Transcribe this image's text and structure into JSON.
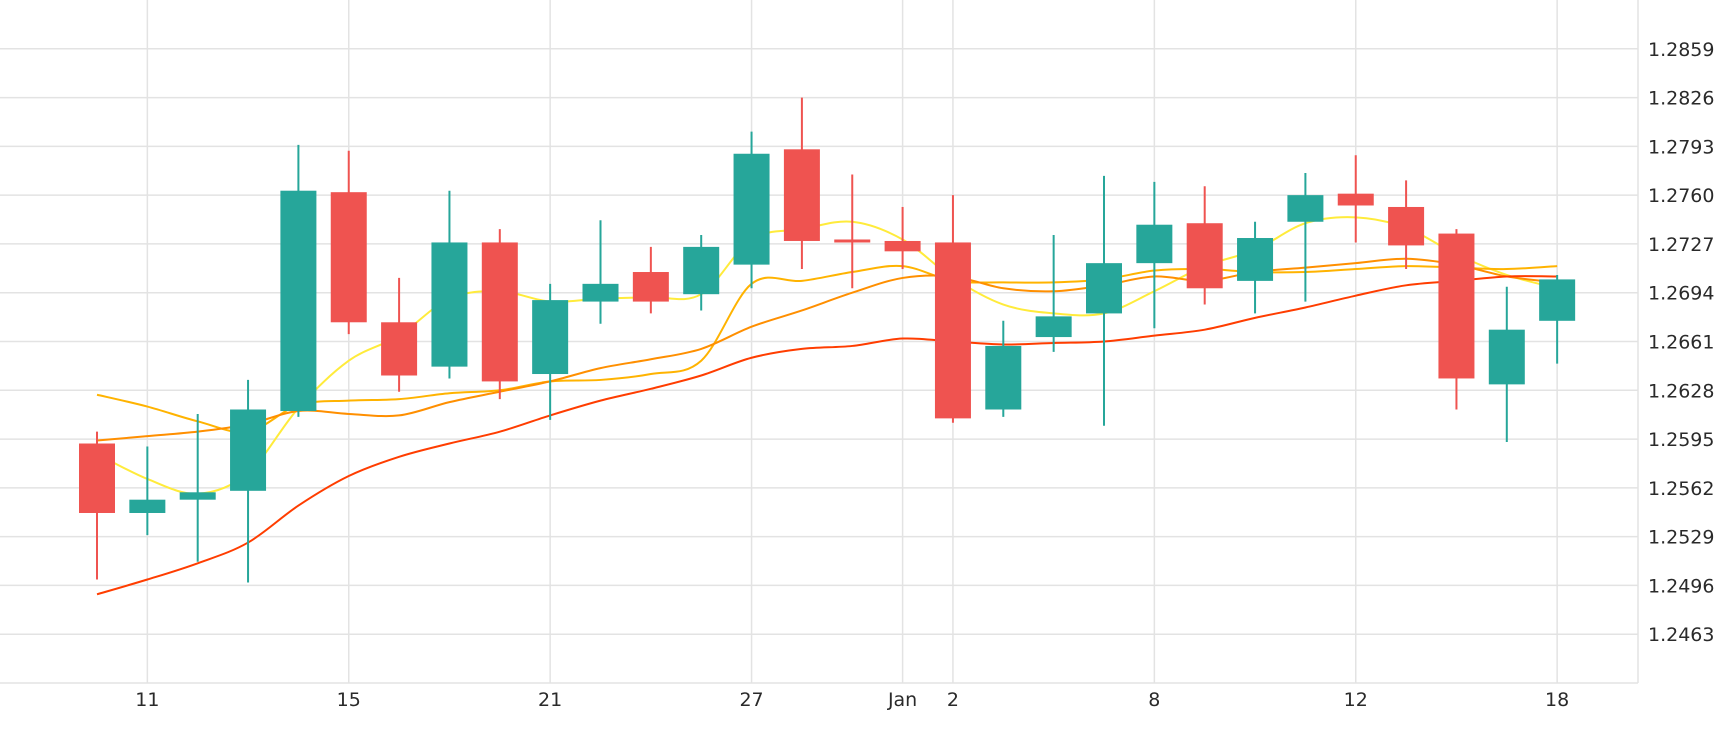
{
  "chart_data": {
    "type": "candlestick",
    "title": "",
    "xlabel": "",
    "ylabel": "",
    "ylim": [
      1.243,
      1.2892
    ],
    "grid": true,
    "legend": "none",
    "colors": {
      "up": "#26a69a",
      "down": "#ef5350",
      "ma1": "#ffeb3b",
      "ma2": "#ffb300",
      "ma3": "#ff8f00",
      "ma4": "#ff3d00"
    },
    "y_ticks": [
      "1.2859",
      "1.2826",
      "1.2793",
      "1.2760",
      "1.2727",
      "1.2694",
      "1.2661",
      "1.2628",
      "1.2595",
      "1.2562",
      "1.2529",
      "1.2496",
      "1.2463"
    ],
    "x_ticks": [
      {
        "i": 1,
        "label": "11"
      },
      {
        "i": 5,
        "label": "15"
      },
      {
        "i": 9,
        "label": "21"
      },
      {
        "i": 13,
        "label": "27"
      },
      {
        "i": 16,
        "label": "Jan"
      },
      {
        "i": 17,
        "label": "2"
      },
      {
        "i": 21,
        "label": "8"
      },
      {
        "i": 25,
        "label": "12"
      },
      {
        "i": 29,
        "label": "18"
      }
    ],
    "candles": [
      {
        "open": 1.2592,
        "high": 1.26,
        "low": 1.25,
        "close": 1.2545
      },
      {
        "open": 1.2545,
        "high": 1.259,
        "low": 1.253,
        "close": 1.2554
      },
      {
        "open": 1.2554,
        "high": 1.2612,
        "low": 1.2512,
        "close": 1.2559
      },
      {
        "open": 1.256,
        "high": 1.2635,
        "low": 1.2498,
        "close": 1.2615
      },
      {
        "open": 1.2614,
        "high": 1.2794,
        "low": 1.261,
        "close": 1.2763
      },
      {
        "open": 1.2762,
        "high": 1.279,
        "low": 1.2666,
        "close": 1.2674
      },
      {
        "open": 1.2674,
        "high": 1.2704,
        "low": 1.2627,
        "close": 1.2638
      },
      {
        "open": 1.2644,
        "high": 1.2763,
        "low": 1.2636,
        "close": 1.2728
      },
      {
        "open": 1.2728,
        "high": 1.2737,
        "low": 1.2622,
        "close": 1.2634
      },
      {
        "open": 1.2639,
        "high": 1.27,
        "low": 1.2608,
        "close": 1.2689
      },
      {
        "open": 1.2688,
        "high": 1.2743,
        "low": 1.2673,
        "close": 1.27
      },
      {
        "open": 1.2708,
        "high": 1.2725,
        "low": 1.268,
        "close": 1.2688
      },
      {
        "open": 1.2693,
        "high": 1.2733,
        "low": 1.2682,
        "close": 1.2725
      },
      {
        "open": 1.2713,
        "high": 1.2803,
        "low": 1.2697,
        "close": 1.2788
      },
      {
        "open": 1.2791,
        "high": 1.2826,
        "low": 1.271,
        "close": 1.2729
      },
      {
        "open": 1.273,
        "high": 1.2774,
        "low": 1.2697,
        "close": 1.2728
      },
      {
        "open": 1.2729,
        "high": 1.2752,
        "low": 1.271,
        "close": 1.2722
      },
      {
        "open": 1.2728,
        "high": 1.276,
        "low": 1.2606,
        "close": 1.2609
      },
      {
        "open": 1.2615,
        "high": 1.2675,
        "low": 1.261,
        "close": 1.2658
      },
      {
        "open": 1.2664,
        "high": 1.2733,
        "low": 1.2654,
        "close": 1.2678
      },
      {
        "open": 1.268,
        "high": 1.2773,
        "low": 1.2604,
        "close": 1.2714
      },
      {
        "open": 1.2714,
        "high": 1.2769,
        "low": 1.267,
        "close": 1.274
      },
      {
        "open": 1.2741,
        "high": 1.2766,
        "low": 1.2686,
        "close": 1.2697
      },
      {
        "open": 1.2702,
        "high": 1.2742,
        "low": 1.268,
        "close": 1.2731
      },
      {
        "open": 1.2742,
        "high": 1.2775,
        "low": 1.2688,
        "close": 1.276
      },
      {
        "open": 1.2761,
        "high": 1.2787,
        "low": 1.2728,
        "close": 1.2753
      },
      {
        "open": 1.2752,
        "high": 1.277,
        "low": 1.271,
        "close": 1.2726
      },
      {
        "open": 1.2734,
        "high": 1.2737,
        "low": 1.2615,
        "close": 1.2636
      },
      {
        "open": 1.2632,
        "high": 1.2698,
        "low": 1.2593,
        "close": 1.2669
      },
      {
        "open": 1.2675,
        "high": 1.2706,
        "low": 1.2646,
        "close": 1.2703
      }
    ],
    "moving_averages": [
      {
        "color": "#ffeb3b",
        "values": [
          1.2585,
          1.2568,
          1.2558,
          1.2572,
          1.2616,
          1.2648,
          1.2665,
          1.269,
          1.2695,
          1.2688,
          1.269,
          1.2691,
          1.2693,
          1.273,
          1.2737,
          1.2742,
          1.273,
          1.2704,
          1.2686,
          1.268,
          1.268,
          1.2695,
          1.2712,
          1.2723,
          1.2741,
          1.2745,
          1.2738,
          1.272,
          1.2706,
          1.2697
        ]
      },
      {
        "color": "#ffb300",
        "values": [
          1.2625,
          1.2617,
          1.2607,
          1.26,
          1.2618,
          1.2621,
          1.2622,
          1.2626,
          1.2628,
          1.2634,
          1.2635,
          1.2639,
          1.2648,
          1.27,
          1.2702,
          1.2708,
          1.2712,
          1.2702,
          1.2701,
          1.2701,
          1.2703,
          1.2709,
          1.271,
          1.2708,
          1.2708,
          1.271,
          1.2712,
          1.2711,
          1.271,
          1.2712
        ]
      },
      {
        "color": "#ff8f00",
        "values": [
          1.2594,
          1.2597,
          1.26,
          1.2605,
          1.2614,
          1.2612,
          1.2611,
          1.262,
          1.2627,
          1.2634,
          1.2643,
          1.2649,
          1.2656,
          1.2671,
          1.2682,
          1.2694,
          1.2704,
          1.2705,
          1.2697,
          1.2695,
          1.2699,
          1.2705,
          1.2702,
          1.2708,
          1.2711,
          1.2714,
          1.2717,
          1.2713,
          1.2705,
          1.2701
        ]
      },
      {
        "color": "#ff3d00",
        "values": [
          1.249,
          1.25,
          1.2511,
          1.2525,
          1.255,
          1.257,
          1.2583,
          1.2592,
          1.26,
          1.2611,
          1.2621,
          1.2629,
          1.2638,
          1.265,
          1.2656,
          1.2658,
          1.2663,
          1.2661,
          1.2659,
          1.266,
          1.2661,
          1.2665,
          1.2669,
          1.2677,
          1.2684,
          1.2692,
          1.2699,
          1.2702,
          1.2705,
          1.2705
        ]
      }
    ]
  }
}
